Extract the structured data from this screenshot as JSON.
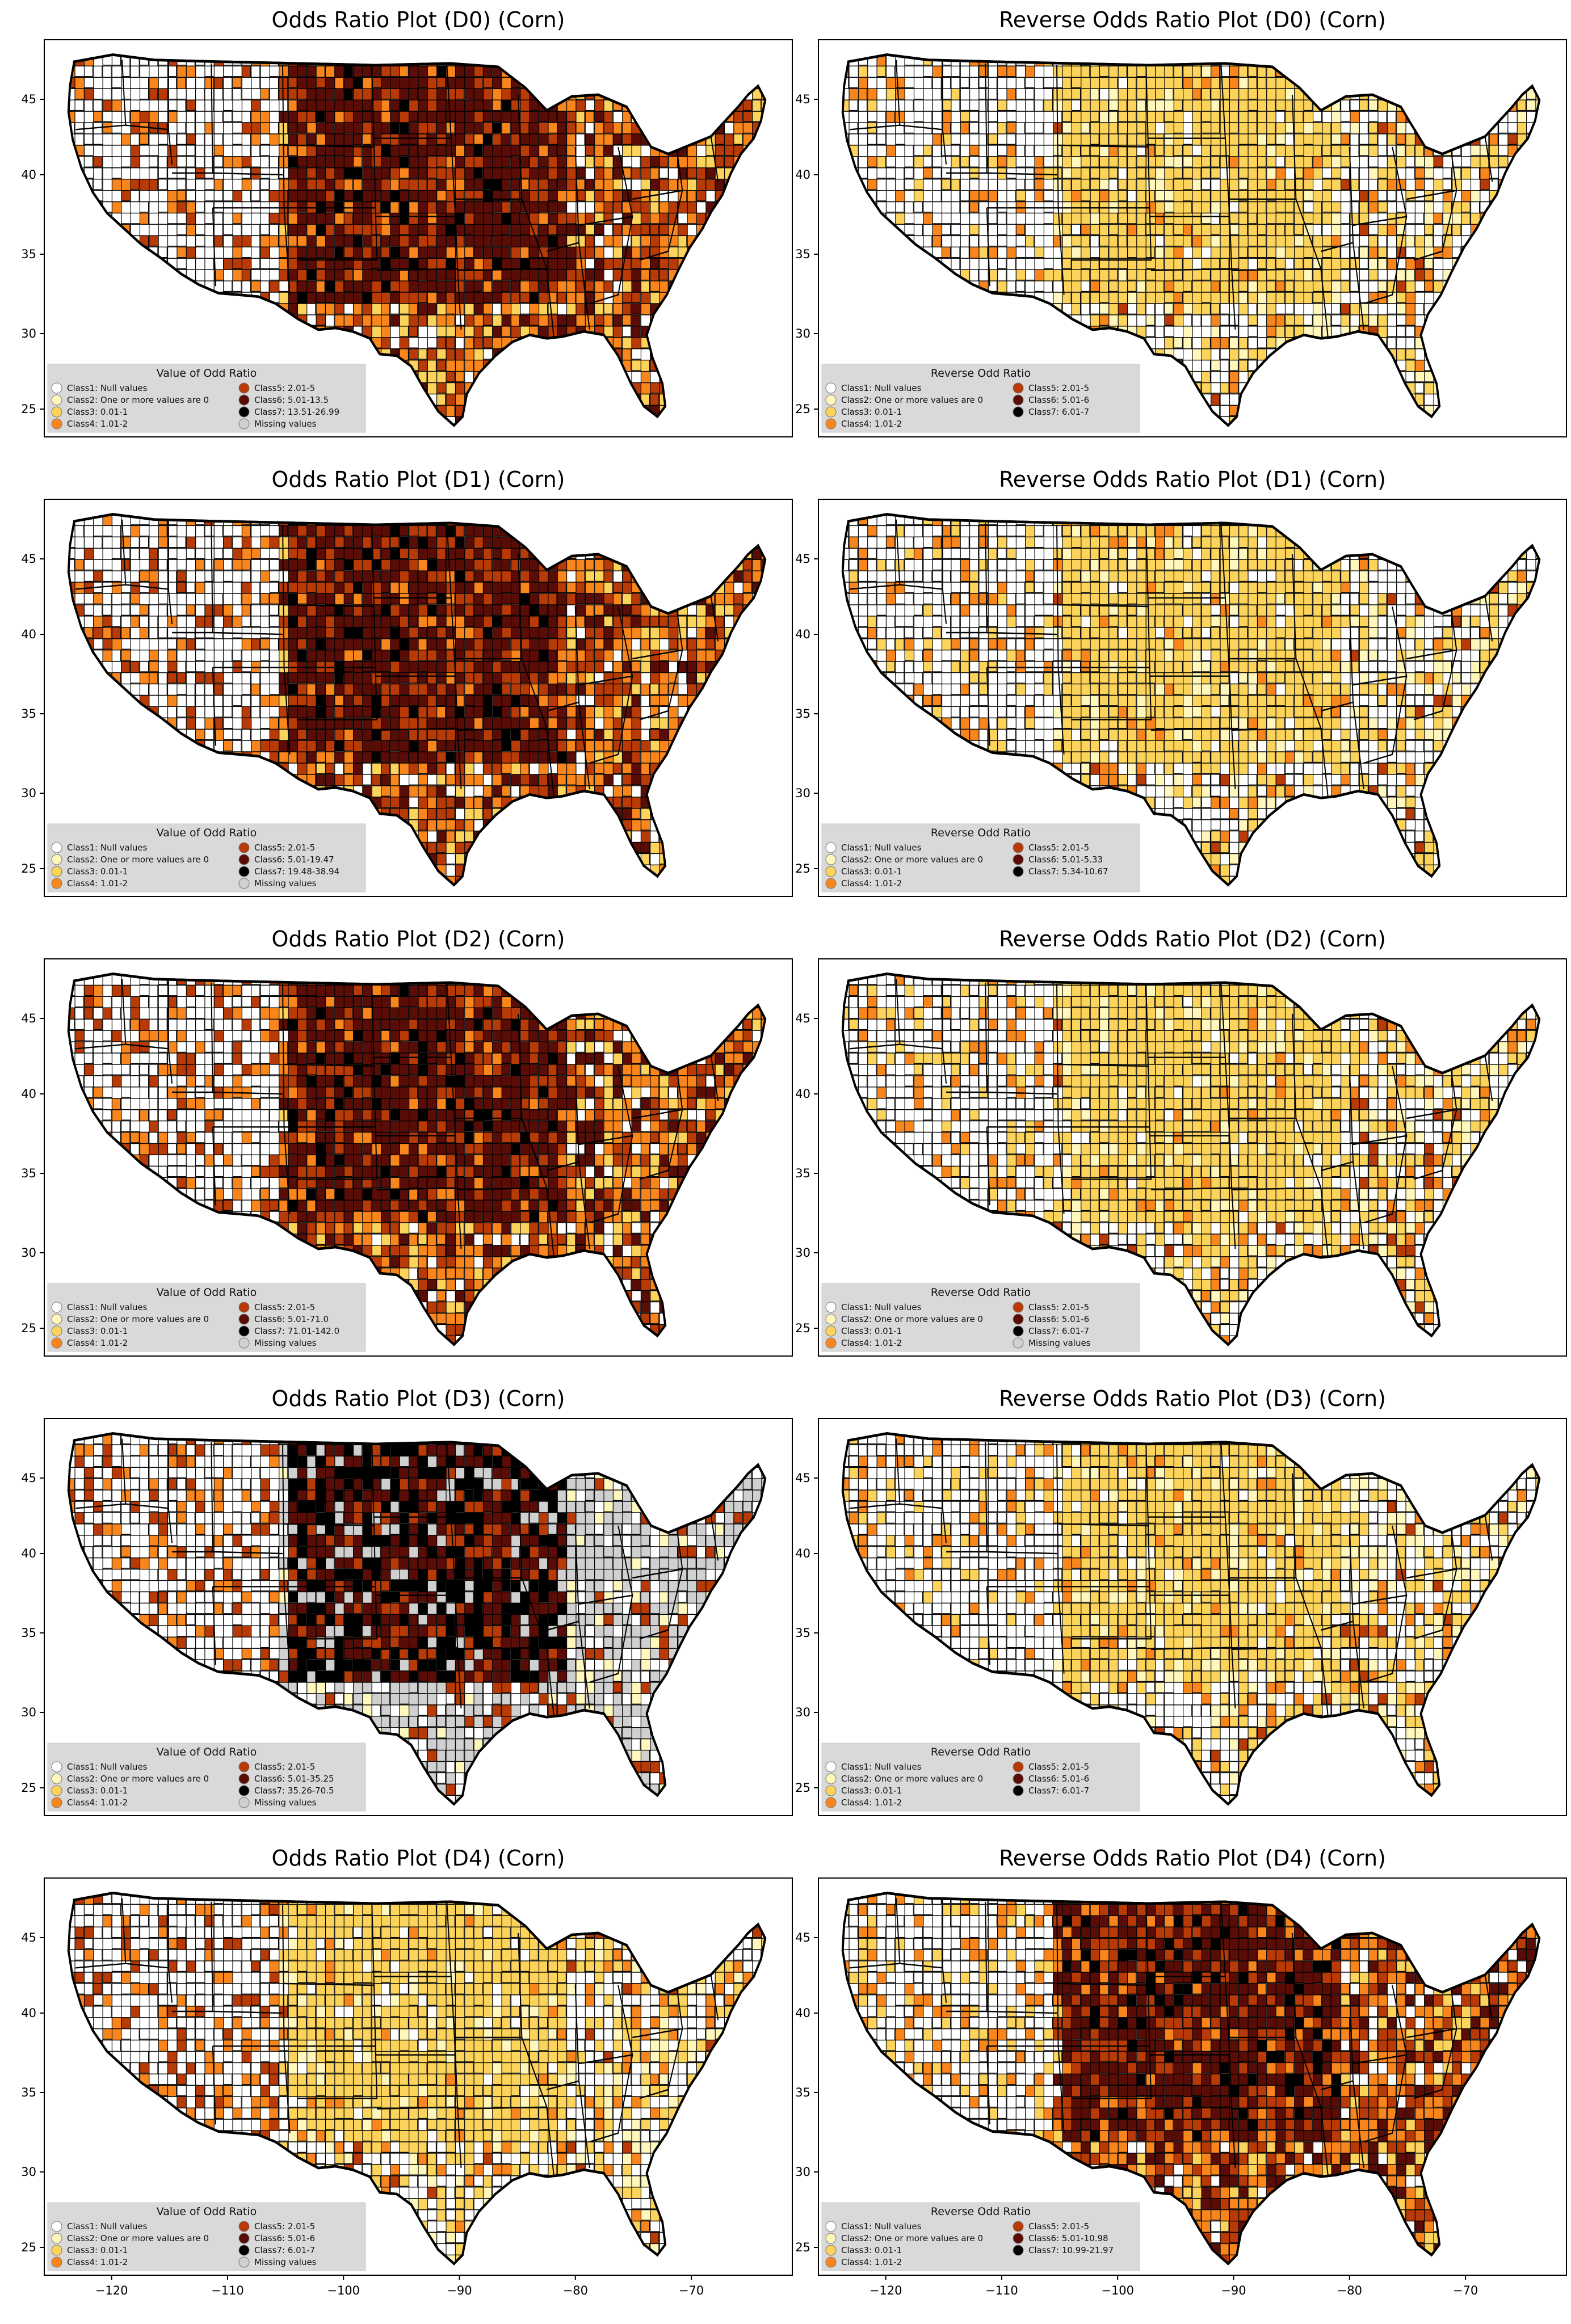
{
  "figure": {
    "panels": [
      {
        "title": "Odds Ratio Plot (D0) (Corn)",
        "legend_title": "Value of Odd Ratio",
        "classes": [
          "Class1: Null values",
          "Class2: One or more values are 0",
          "Class3: 0.01-1",
          "Class4: 1.01-2",
          "Class5: 2.01-5",
          "Class6: 5.01-13.5",
          "Class7: 13.51-26.99",
          "Missing values"
        ]
      },
      {
        "title": "Reverse Odds Ratio Plot (D0) (Corn)",
        "legend_title": "Reverse Odd Ratio",
        "classes": [
          "Class1: Null values",
          "Class2: One or more values are 0",
          "Class3: 0.01-1",
          "Class4: 1.01-2",
          "Class5: 2.01-5",
          "Class6: 5.01-6",
          "Class7: 6.01-7"
        ]
      },
      {
        "title": "Odds Ratio Plot (D1) (Corn)",
        "legend_title": "Value of Odd Ratio",
        "classes": [
          "Class1: Null values",
          "Class2: One or more values are 0",
          "Class3: 0.01-1",
          "Class4: 1.01-2",
          "Class5: 2.01-5",
          "Class6: 5.01-19.47",
          "Class7: 19.48-38.94",
          "Missing values"
        ]
      },
      {
        "title": "Reverse Odds Ratio Plot (D1) (Corn)",
        "legend_title": "Reverse Odd Ratio",
        "classes": [
          "Class1: Null values",
          "Class2: One or more values are 0",
          "Class3: 0.01-1",
          "Class4: 1.01-2",
          "Class5: 2.01-5",
          "Class6: 5.01-5.33",
          "Class7: 5.34-10.67"
        ]
      },
      {
        "title": "Odds Ratio Plot (D2) (Corn)",
        "legend_title": "Value of Odd Ratio",
        "classes": [
          "Class1: Null values",
          "Class2: One or more values are 0",
          "Class3: 0.01-1",
          "Class4: 1.01-2",
          "Class5: 2.01-5",
          "Class6: 5.01-71.0",
          "Class7: 71.01-142.0",
          "Missing values"
        ]
      },
      {
        "title": "Reverse Odds Ratio Plot (D2) (Corn)",
        "legend_title": "Reverse Odd Ratio",
        "classes": [
          "Class1: Null values",
          "Class2: One or more values are 0",
          "Class3: 0.01-1",
          "Class4: 1.01-2",
          "Class5: 2.01-5",
          "Class6: 5.01-6",
          "Class7: 6.01-7",
          "Missing values"
        ]
      },
      {
        "title": "Odds Ratio Plot (D3) (Corn)",
        "legend_title": "Value of Odd Ratio",
        "classes": [
          "Class1: Null values",
          "Class2: One or more values are 0",
          "Class3: 0.01-1",
          "Class4: 1.01-2",
          "Class5: 2.01-5",
          "Class6: 5.01-35.25",
          "Class7: 35.26-70.5",
          "Missing values"
        ]
      },
      {
        "title": "Reverse Odds Ratio Plot (D3) (Corn)",
        "legend_title": "Reverse Odd Ratio",
        "classes": [
          "Class1: Null values",
          "Class2: One or more values are 0",
          "Class3: 0.01-1",
          "Class4: 1.01-2",
          "Class5: 2.01-5",
          "Class6: 5.01-6",
          "Class7: 6.01-7"
        ]
      },
      {
        "title": "Odds Ratio Plot (D4) (Corn)",
        "legend_title": "Value of Odd Ratio",
        "classes": [
          "Class1: Null values",
          "Class2: One or more values are 0",
          "Class3: 0.01-1",
          "Class4: 1.01-2",
          "Class5: 2.01-5",
          "Class6: 5.01-6",
          "Class7: 6.01-7",
          "Missing values"
        ]
      },
      {
        "title": "Reverse Odds Ratio Plot (D4) (Corn)",
        "legend_title": "Reverse Odd Ratio",
        "classes": [
          "Class1: Null values",
          "Class2: One or more values are 0",
          "Class3: 0.01-1",
          "Class4: 1.01-2",
          "Class5: 2.01-5",
          "Class6: 5.01-10.98",
          "Class7: 10.99-21.97"
        ]
      }
    ],
    "class_colors": [
      "#ffffff",
      "#fff7bc",
      "#fcd35b",
      "#f8861c",
      "#b83a06",
      "#5a0d06",
      "#000000",
      "#d0d0d0"
    ],
    "lat_ticks": [
      "45",
      "40",
      "35",
      "30",
      "25"
    ],
    "lon_ticks": [
      "−120",
      "−110",
      "−100",
      "−90",
      "−80",
      "−70"
    ],
    "dominant_class": [
      6,
      3,
      6,
      3,
      6,
      3,
      7,
      3,
      3,
      6
    ]
  }
}
